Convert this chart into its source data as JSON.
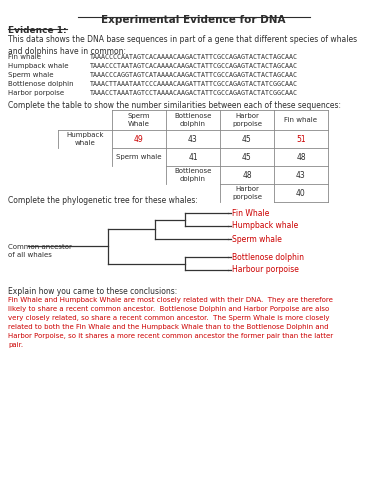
{
  "title": "Experimental Evidence for DNA",
  "evidence_label": "Evidence 1:",
  "intro_text": "This data shows the DNA base sequences in part of a gene that different species of whales\nand dolphins have in common:",
  "sequences": [
    [
      "Fin whale",
      "TAAACCCCAATAGTCACAAAACAAGACTATTCGCCAGAGTACTACTAGCAAC"
    ],
    [
      "Humpback whale",
      "TAAACCCTAATAGTCACAAAACAAGACTATTCGCCAGAGTACTACTAGCAAC"
    ],
    [
      "Sperm whale",
      "TAAACCCAGGTAGTCATAAAACAAGACTATTCGCCAGAGTACTACTAGCAAC"
    ],
    [
      "Bottlenose dolphin",
      "TAAACTTAAATAATCCCAAAACAAGATTATTCGCCAGAGTACTATCGGCAAC"
    ],
    [
      "Harbor porpoise",
      "TAAACCTAAATAGTCCTAAAACAAGACTATTCGCCAGAGTACTATCGGCAAC"
    ]
  ],
  "table_prompt": "Complete the table to show the number similarities between each of these sequences:",
  "table_col_headers": [
    "Sperm\nWhale",
    "Bottlenose\ndolphin",
    "Harbor\nporpoise",
    "Fin whale"
  ],
  "table_data": [
    [
      "49",
      "43",
      "45",
      "51"
    ],
    [
      null,
      "41",
      "45",
      "48"
    ],
    [
      null,
      null,
      "48",
      "43"
    ],
    [
      null,
      null,
      null,
      "40"
    ]
  ],
  "table_red_cells": [
    [
      0,
      0
    ],
    [
      0,
      3
    ]
  ],
  "tree_prompt": "Complete the phylogenetic tree for these whales:",
  "tree_labels": [
    "Fin Whale",
    "Humpback whale",
    "Sperm whale",
    "Bottlenose dolphin",
    "Harbour porpoise"
  ],
  "ancestor_label": "Common ancestor\nof all whales",
  "explain_prompt": "Explain how you came to these conclusions:",
  "explain_text": "Fin Whale and Humpback Whale are most closely related with their DNA.  They are therefore\nlikely to share a recent common ancestor.  Bottlenose Dolphin and Harbor Porpoise are also\nvery closely related, so share a recent common ancestor.  The Sperm Whale is more closely\nrelated to both the Fin Whale and the Humpback Whale than to the Bottlenose Dolphin and\nHarbor Porpoise, so it shares a more recent common ancestor the former pair than the latter\npair.",
  "bg_color": "#ffffff",
  "text_color": "#2d2d2d",
  "red_color": "#cc0000",
  "table_border_color": "#888888",
  "tree_color": "#333333"
}
